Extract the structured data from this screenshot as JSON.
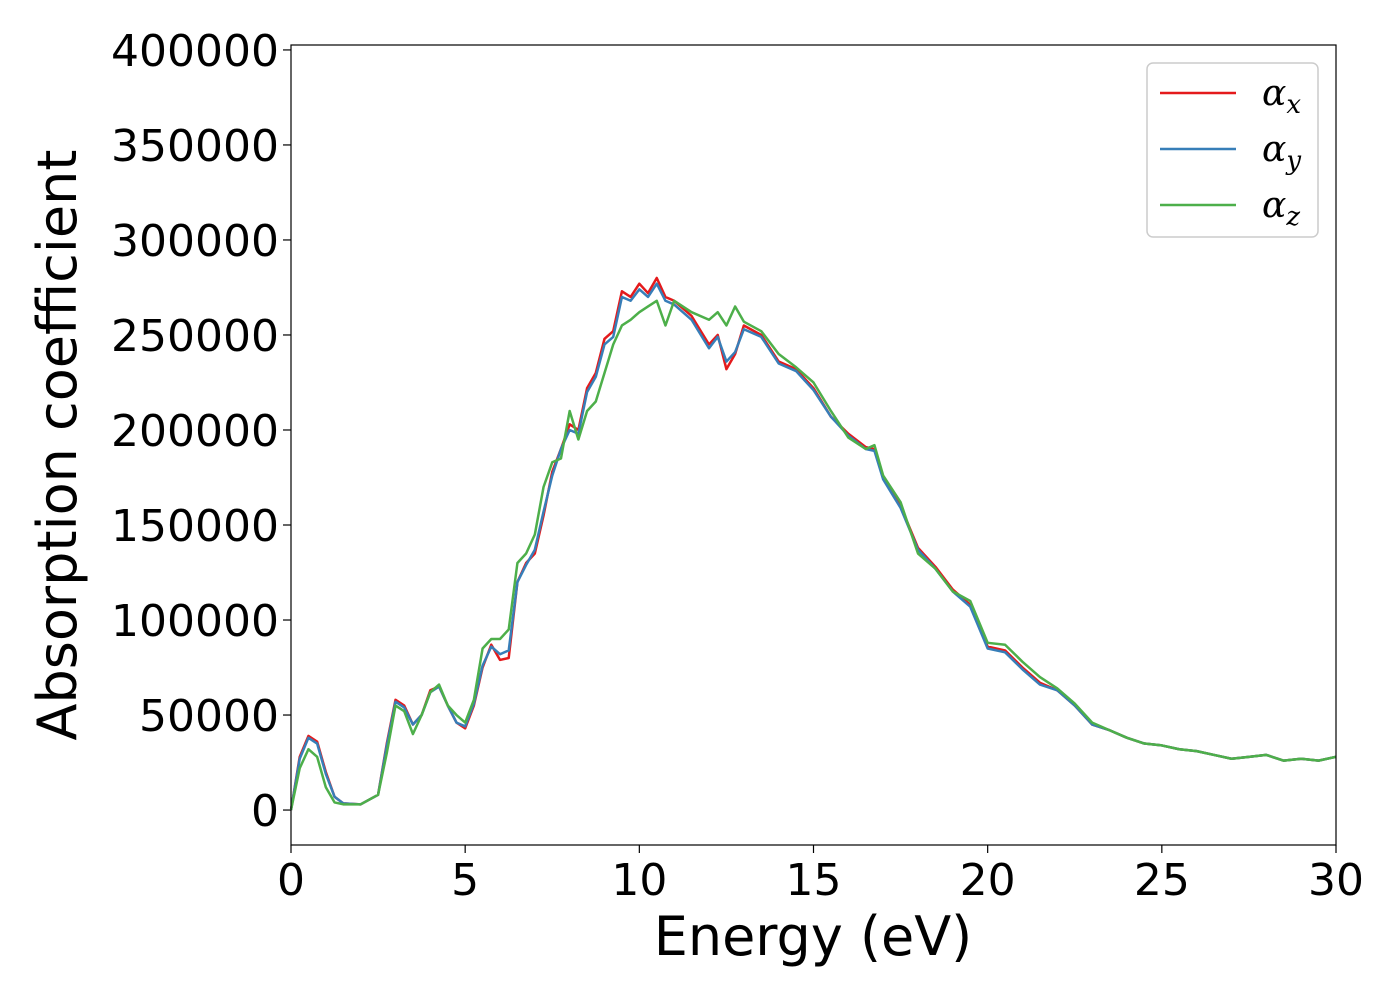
{
  "chart_data": {
    "type": "line",
    "xlabel": "Energy (eV)",
    "ylabel": "Absorption coefficient",
    "x": [
      0,
      0.25,
      0.5,
      0.75,
      1,
      1.25,
      1.5,
      2,
      2.5,
      2.75,
      3,
      3.25,
      3.5,
      3.75,
      4,
      4.25,
      4.5,
      4.75,
      5,
      5.25,
      5.5,
      5.75,
      6,
      6.25,
      6.5,
      6.75,
      7,
      7.25,
      7.5,
      7.75,
      8,
      8.25,
      8.5,
      8.75,
      9,
      9.25,
      9.5,
      9.75,
      10,
      10.25,
      10.5,
      10.75,
      11,
      11.5,
      12,
      12.25,
      12.5,
      12.75,
      13,
      13.5,
      14,
      14.5,
      15,
      15.5,
      16,
      16.5,
      16.75,
      17,
      17.5,
      18,
      18.5,
      19,
      19.5,
      20,
      20.5,
      21,
      21.5,
      22,
      22.5,
      23,
      23.5,
      24,
      24.5,
      25,
      25.5,
      26,
      26.5,
      27,
      27.5,
      28,
      28.5,
      29,
      29.5,
      30
    ],
    "series": [
      {
        "name": "αx",
        "color": "#e41a1c",
        "values": [
          0,
          28000,
          39000,
          36000,
          20000,
          7000,
          3500,
          3000,
          8000,
          35000,
          58000,
          55000,
          45000,
          50000,
          63000,
          65000,
          55000,
          46000,
          43000,
          55000,
          75000,
          87000,
          79000,
          80000,
          120000,
          130000,
          135000,
          155000,
          178000,
          190000,
          203000,
          200000,
          222000,
          230000,
          248000,
          252000,
          273000,
          270000,
          277000,
          272000,
          280000,
          270000,
          268000,
          260000,
          245000,
          250000,
          232000,
          240000,
          255000,
          250000,
          236000,
          232000,
          222000,
          207000,
          198000,
          191000,
          190000,
          175000,
          160000,
          138000,
          128000,
          116000,
          108000,
          86000,
          84000,
          75000,
          67000,
          63000,
          55000,
          45000,
          42000,
          38000,
          35000,
          34000,
          32000,
          31000,
          29000,
          27000,
          28000,
          29000,
          26000,
          27000,
          26000,
          28000
        ]
      },
      {
        "name": "αy",
        "color": "#377eb8",
        "values": [
          0,
          27000,
          38000,
          35000,
          19000,
          7000,
          3500,
          3000,
          8000,
          34000,
          57000,
          54000,
          45000,
          50000,
          62000,
          65000,
          55000,
          46000,
          44000,
          56000,
          76000,
          86000,
          82000,
          84000,
          120000,
          129000,
          137000,
          157000,
          176000,
          190000,
          200000,
          198000,
          220000,
          228000,
          245000,
          249000,
          270000,
          268000,
          274000,
          270000,
          277000,
          268000,
          266000,
          258000,
          243000,
          249000,
          236000,
          241000,
          253000,
          249000,
          235000,
          231000,
          221000,
          207000,
          197000,
          190000,
          189000,
          174000,
          159000,
          137000,
          127000,
          115000,
          107000,
          85000,
          83000,
          74000,
          66000,
          63000,
          55000,
          45000,
          42000,
          38000,
          35000,
          34000,
          32000,
          31000,
          29000,
          27000,
          28000,
          29000,
          26000,
          27000,
          26000,
          28000
        ]
      },
      {
        "name": "αz",
        "color": "#4daf4a",
        "values": [
          0,
          22000,
          32000,
          28000,
          12000,
          4000,
          3000,
          3000,
          8000,
          30000,
          55000,
          52000,
          40000,
          50000,
          62000,
          66000,
          55000,
          50000,
          46000,
          58000,
          85000,
          90000,
          90000,
          95000,
          130000,
          135000,
          145000,
          170000,
          183000,
          185000,
          210000,
          195000,
          210000,
          215000,
          230000,
          245000,
          255000,
          258000,
          262000,
          265000,
          268000,
          255000,
          268000,
          262000,
          258000,
          262000,
          255000,
          265000,
          257000,
          252000,
          240000,
          233000,
          225000,
          210000,
          196000,
          190000,
          192000,
          176000,
          162000,
          135000,
          127000,
          115000,
          110000,
          88000,
          87000,
          78000,
          70000,
          64000,
          56000,
          46000,
          42000,
          38000,
          35000,
          34000,
          32000,
          31000,
          29000,
          27000,
          28000,
          29000,
          26000,
          27000,
          26000,
          28000
        ]
      }
    ],
    "xlim": [
      0,
      30
    ],
    "xticks": [
      0,
      5,
      10,
      15,
      20,
      25,
      30
    ],
    "ylim": [
      -18400,
      402600
    ],
    "yticks": [
      0,
      50000,
      100000,
      150000,
      200000,
      250000,
      300000,
      350000,
      400000
    ],
    "grid": false,
    "legend": "upper right"
  }
}
